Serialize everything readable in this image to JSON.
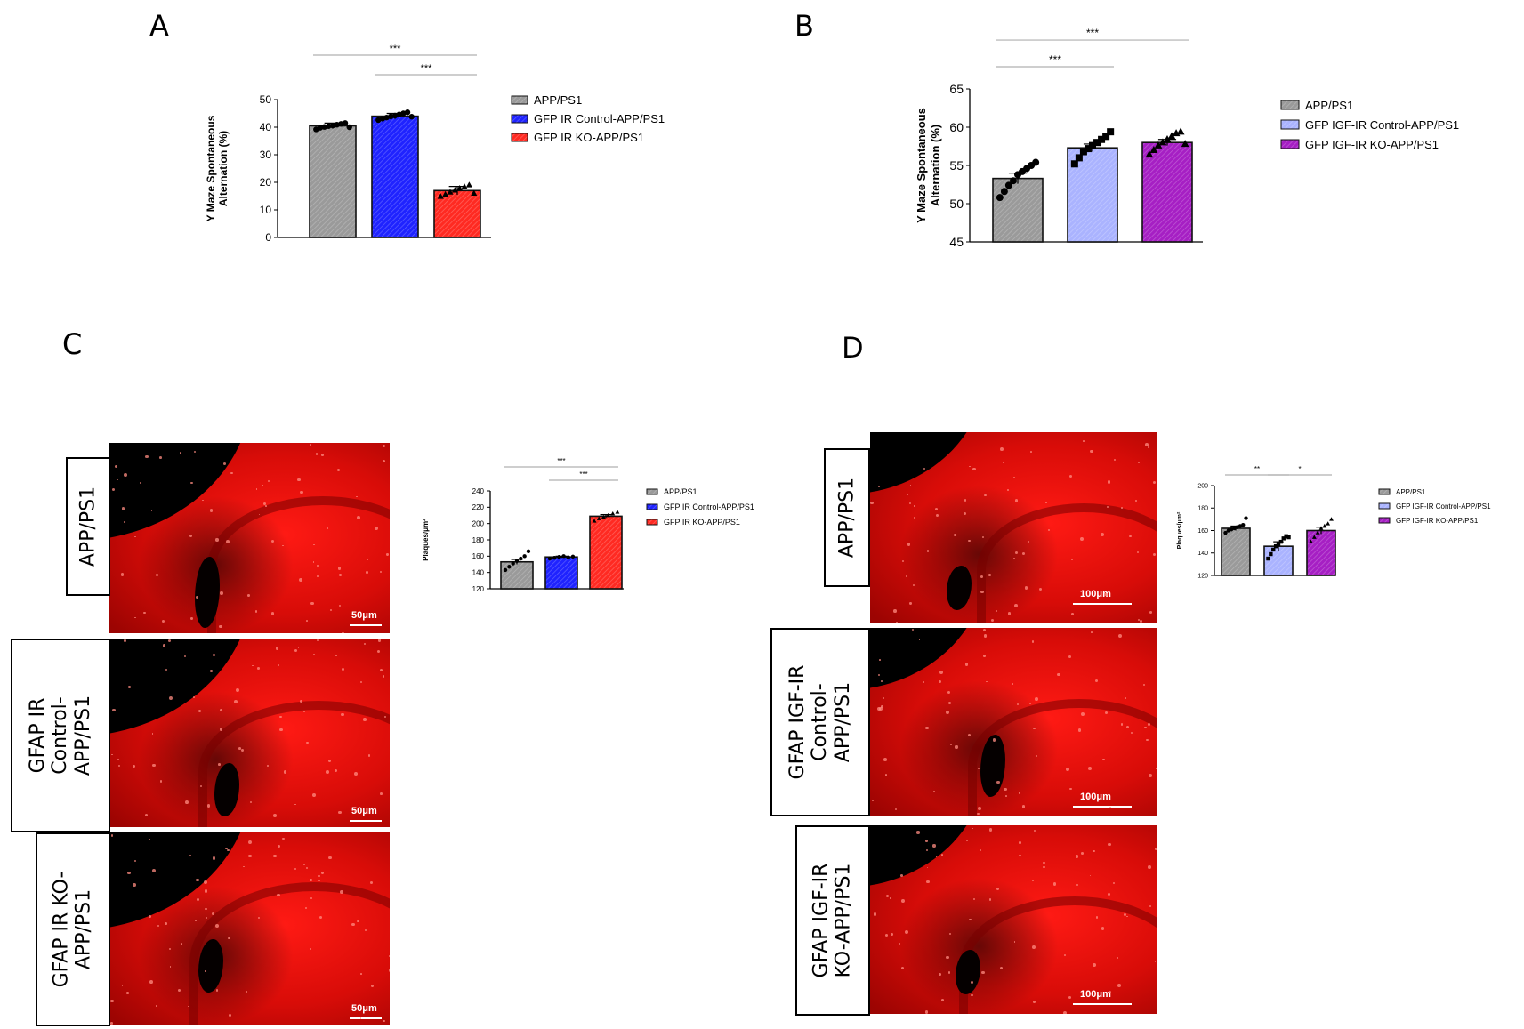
{
  "panels": {
    "a": "A",
    "b": "B",
    "c": "C",
    "d": "D"
  },
  "colors": {
    "gray": "#9a9a9a",
    "blue": "#1f23ff",
    "red": "#ff2a22",
    "lavender": "#aab3ff",
    "purple": "#a61fc4",
    "axis": "#000000",
    "sigline": "#bdbdbd"
  },
  "chart_data": [
    {
      "id": "A",
      "type": "bar",
      "categories": [
        "APP/PS1",
        "GFP IR Control-APP/PS1",
        "GFP IR KO-APP/PS1"
      ],
      "values": [
        40.5,
        44,
        17
      ],
      "errors": [
        1,
        1,
        1.5
      ],
      "colors": [
        "#9a9a9a",
        "#1f23ff",
        "#ff2a22"
      ],
      "points": [
        [
          39.2,
          39.8,
          40.1,
          40.4,
          40.6,
          40.9,
          41.2,
          41.5,
          40.0
        ],
        [
          42.6,
          43.1,
          43.5,
          43.9,
          44.2,
          44.6,
          45.0,
          45.4,
          43.8
        ],
        [
          14.8,
          15.6,
          16.4,
          17.1,
          17.8,
          18.4,
          19.0,
          16.0
        ]
      ],
      "ylim": [
        0,
        50
      ],
      "yticks": [
        0,
        10,
        20,
        30,
        40,
        50
      ],
      "ylabel": "Y Maze Spontaneous\nAlternation (%)",
      "legend": [
        "APP/PS1",
        "GFP IR Control-APP/PS1",
        "GFP IR KO-APP/PS1"
      ],
      "significance": [
        {
          "from": 0,
          "to": 2,
          "label": "***"
        },
        {
          "from": 1,
          "to": 2,
          "label": "***"
        }
      ],
      "point_marker": [
        "circle",
        "circle",
        "triangle"
      ]
    },
    {
      "id": "B",
      "type": "bar",
      "categories": [
        "APP/PS1",
        "GFP IGF-IR Control-APP/PS1",
        "GFP IGF-IR KO-APP/PS1"
      ],
      "values": [
        53.3,
        57.3,
        58
      ],
      "errors": [
        0.7,
        0.5,
        0.4
      ],
      "colors": [
        "#9a9a9a",
        "#aab3ff",
        "#a61fc4"
      ],
      "points": [
        [
          50.8,
          51.6,
          52.4,
          53.0,
          53.8,
          54.2,
          54.6,
          55.0,
          55.4
        ],
        [
          55.2,
          56.0,
          56.8,
          57.2,
          57.6,
          58.0,
          58.4,
          58.8,
          59.4
        ],
        [
          56.4,
          57.0,
          57.6,
          58.0,
          58.4,
          58.8,
          59.2,
          59.4,
          57.8
        ]
      ],
      "ylim": [
        45,
        65
      ],
      "yticks": [
        45,
        50,
        55,
        60,
        65
      ],
      "ylabel": "Y Maze Spontaneous\nAlternation (%)",
      "legend": [
        "APP/PS1",
        "GFP IGF-IR Control-APP/PS1",
        "GFP IGF-IR KO-APP/PS1"
      ],
      "significance": [
        {
          "from": 0,
          "to": 1,
          "label": "***"
        },
        {
          "from": 0,
          "to": 2,
          "label": "***"
        }
      ],
      "point_marker": [
        "circle",
        "square",
        "triangle"
      ]
    },
    {
      "id": "C",
      "type": "bar",
      "categories": [
        "APP/PS1",
        "GFP IR Control-APP/PS1",
        "GFP IR KO-APP/PS1"
      ],
      "values": [
        153,
        159,
        209
      ],
      "errors": [
        3,
        1,
        2
      ],
      "colors": [
        "#9a9a9a",
        "#1f23ff",
        "#ff2a22"
      ],
      "points": [
        [
          143,
          147,
          151,
          154,
          157,
          160,
          166
        ],
        [
          157,
          158,
          159,
          160,
          158.5,
          159.5
        ],
        [
          203,
          206,
          208,
          210,
          212,
          214
        ]
      ],
      "ylim": [
        120,
        240
      ],
      "yticks": [
        120,
        140,
        160,
        180,
        200,
        220,
        240
      ],
      "ylabel": "Plaques/μm²",
      "legend": [
        "APP/PS1",
        "GFP IR Control-APP/PS1",
        "GFP IR KO-APP/PS1"
      ],
      "significance": [
        {
          "from": 0,
          "to": 2,
          "label": "***"
        },
        {
          "from": 1,
          "to": 2,
          "label": "***"
        }
      ],
      "point_marker": [
        "circle",
        "circle",
        "triangle"
      ]
    },
    {
      "id": "D",
      "type": "bar",
      "categories": [
        "APP/PS1",
        "GFP IGF-IR Control-APP/PS1",
        "GFP IGF-IR KO-APP/PS1"
      ],
      "values": [
        162,
        146,
        160
      ],
      "errors": [
        2,
        4,
        3
      ],
      "colors": [
        "#9a9a9a",
        "#aab3ff",
        "#a61fc4"
      ],
      "points": [
        [
          158,
          160,
          161,
          162,
          163,
          164,
          165,
          171
        ],
        [
          135,
          139,
          143,
          146,
          148,
          150,
          153,
          155,
          154
        ],
        [
          150,
          154,
          158,
          162,
          164,
          166,
          170
        ]
      ],
      "ylim": [
        120,
        200
      ],
      "yticks": [
        120,
        140,
        160,
        180,
        200
      ],
      "ylabel": "Plaques/μm²",
      "legend": [
        "APP/PS1",
        "GFP IGF-IR Control-APP/PS1",
        "GFP IGF-IR KO-APP/PS1"
      ],
      "significance": [
        {
          "from": 0,
          "to": 1,
          "label": "**"
        },
        {
          "from": 1,
          "to": 2,
          "label": "*"
        }
      ],
      "point_marker": [
        "circle",
        "square",
        "triangle"
      ]
    }
  ],
  "micrographs": {
    "c_rows": [
      "APP/PS1",
      "GFAP IR\nControl-\nAPP/PS1",
      "GFAP IR KO-\nAPP/PS1"
    ],
    "c_scale": "50μm",
    "d_rows": [
      "APP/PS1",
      "GFAP IGF-IR\nControl-\nAPP/PS1",
      "GFAP IGF-IR\nKO-APP/PS1"
    ],
    "d_scale": "100μm"
  }
}
